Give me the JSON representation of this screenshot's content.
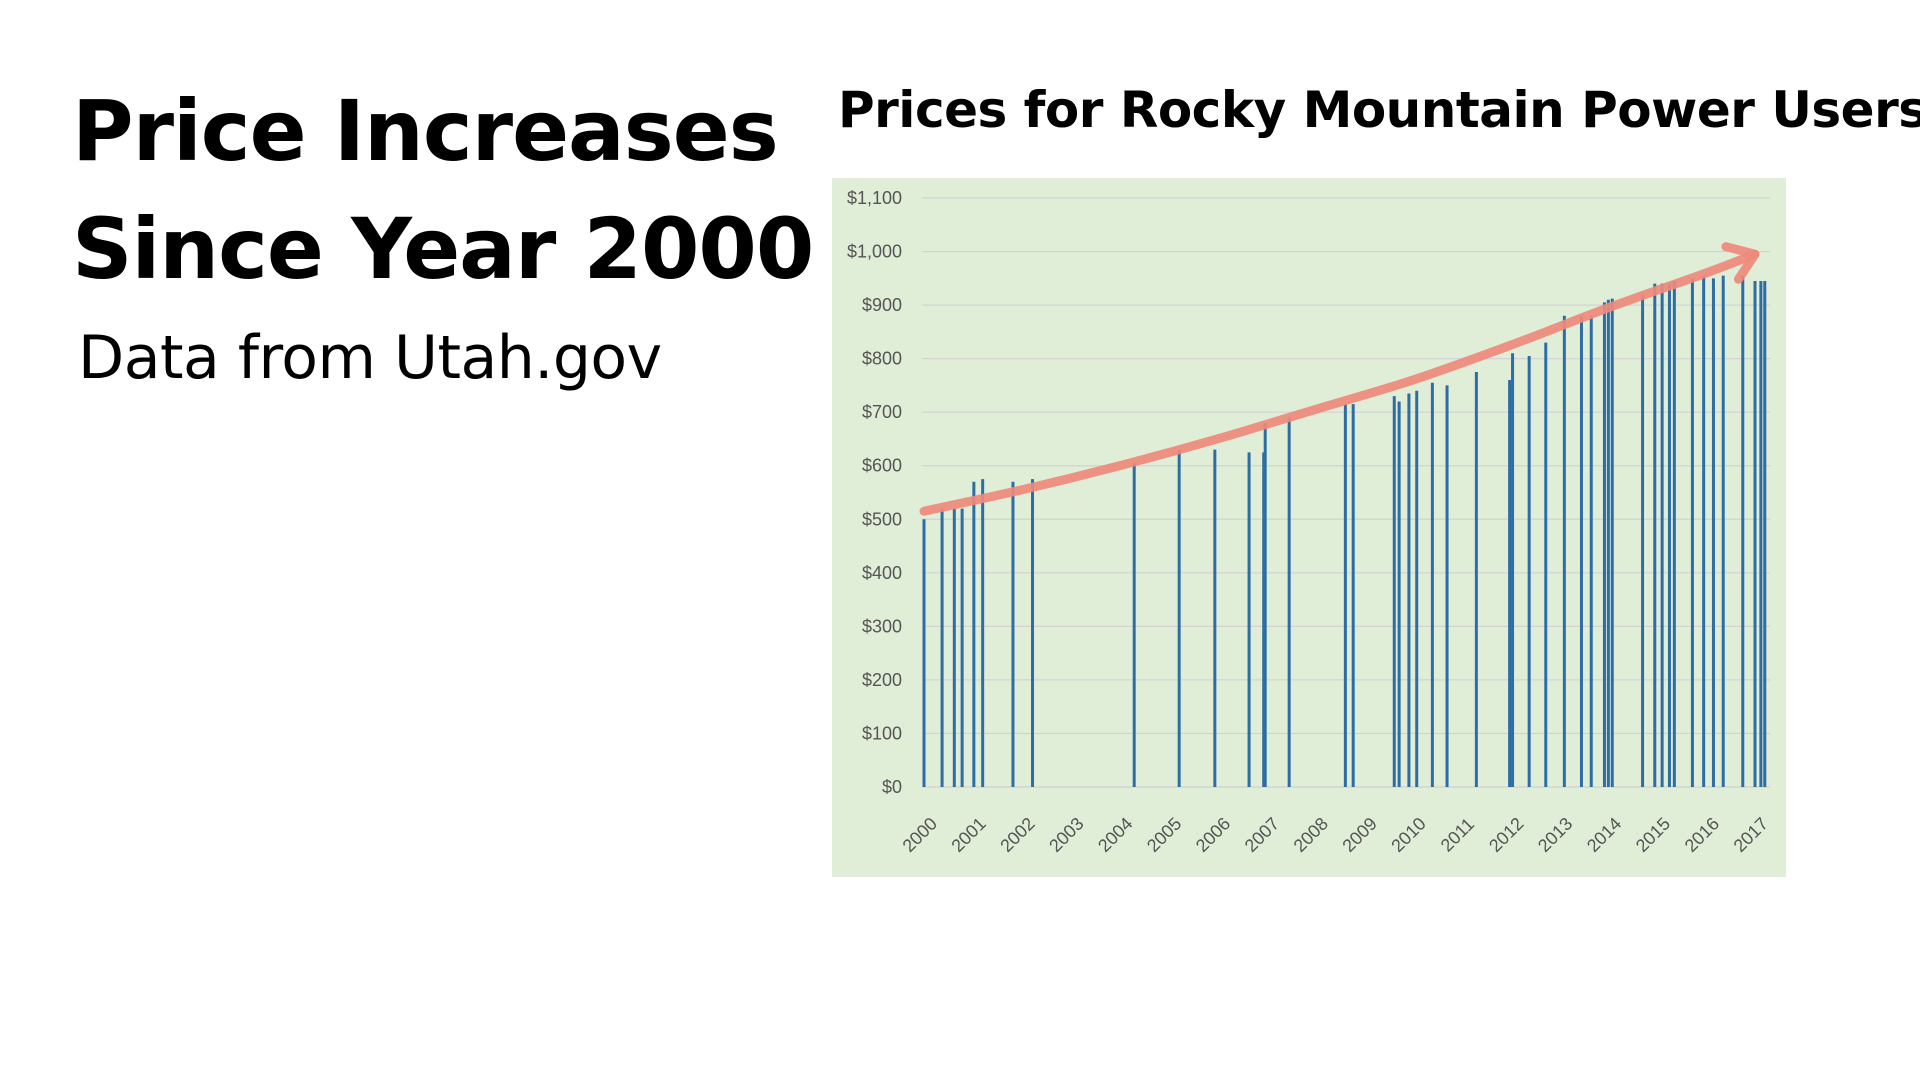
{
  "slide": {
    "heading_line1": "Price Increases",
    "heading_line2": "Since Year 2000",
    "source": "Data from Utah.gov"
  },
  "chart_data": {
    "type": "bar",
    "title": "Prices for Rocky Mountain Power Users",
    "xlabel": "",
    "ylabel": "",
    "ylim": [
      0,
      1100
    ],
    "y_ticks": [
      0,
      100,
      200,
      300,
      400,
      500,
      600,
      700,
      800,
      900,
      1000,
      1100
    ],
    "y_tick_labels": [
      "$0",
      "$100",
      "$200",
      "$300",
      "$400",
      "$500",
      "$600",
      "$700",
      "$800",
      "$900",
      "$1,000",
      "$1,100"
    ],
    "x_range": [
      2000,
      2017
    ],
    "x_tick_labels": [
      "2000",
      "2001",
      "2002",
      "2003",
      "2004",
      "2005",
      "2006",
      "2007",
      "2008",
      "2009",
      "2010",
      "2011",
      "2012",
      "2013",
      "2014",
      "2015",
      "2016",
      "2017"
    ],
    "grid": true,
    "bar_color": "#2e6da4",
    "background_color": "#e0eed8",
    "grid_color": "#d2d2d2",
    "points": [
      {
        "x": 2000.0,
        "y": 500
      },
      {
        "x": 2000.37,
        "y": 520
      },
      {
        "x": 2000.62,
        "y": 520
      },
      {
        "x": 2000.78,
        "y": 520
      },
      {
        "x": 2001.02,
        "y": 570
      },
      {
        "x": 2001.2,
        "y": 575
      },
      {
        "x": 2001.82,
        "y": 570
      },
      {
        "x": 2002.22,
        "y": 575
      },
      {
        "x": 2004.3,
        "y": 605
      },
      {
        "x": 2005.22,
        "y": 630
      },
      {
        "x": 2005.95,
        "y": 630
      },
      {
        "x": 2006.65,
        "y": 625
      },
      {
        "x": 2006.95,
        "y": 625
      },
      {
        "x": 2006.98,
        "y": 680
      },
      {
        "x": 2007.47,
        "y": 690
      },
      {
        "x": 2008.62,
        "y": 715
      },
      {
        "x": 2008.78,
        "y": 715
      },
      {
        "x": 2009.62,
        "y": 730
      },
      {
        "x": 2009.72,
        "y": 720
      },
      {
        "x": 2009.92,
        "y": 735
      },
      {
        "x": 2010.08,
        "y": 740
      },
      {
        "x": 2010.4,
        "y": 755
      },
      {
        "x": 2010.7,
        "y": 750
      },
      {
        "x": 2011.3,
        "y": 775
      },
      {
        "x": 2011.98,
        "y": 760
      },
      {
        "x": 2012.04,
        "y": 810
      },
      {
        "x": 2012.38,
        "y": 805
      },
      {
        "x": 2012.72,
        "y": 830
      },
      {
        "x": 2013.1,
        "y": 880
      },
      {
        "x": 2013.45,
        "y": 880
      },
      {
        "x": 2013.65,
        "y": 880
      },
      {
        "x": 2013.92,
        "y": 905
      },
      {
        "x": 2014.0,
        "y": 910
      },
      {
        "x": 2014.08,
        "y": 912
      },
      {
        "x": 2014.7,
        "y": 920
      },
      {
        "x": 2014.95,
        "y": 940
      },
      {
        "x": 2015.1,
        "y": 940
      },
      {
        "x": 2015.25,
        "y": 940
      },
      {
        "x": 2015.35,
        "y": 945
      },
      {
        "x": 2015.72,
        "y": 950
      },
      {
        "x": 2015.95,
        "y": 955
      },
      {
        "x": 2016.15,
        "y": 950
      },
      {
        "x": 2016.35,
        "y": 955
      },
      {
        "x": 2016.75,
        "y": 955
      },
      {
        "x": 2017.0,
        "y": 945
      },
      {
        "x": 2017.12,
        "y": 945
      },
      {
        "x": 2017.2,
        "y": 945
      }
    ],
    "annotation": {
      "kind": "trend-arrow",
      "color": "#ee8a7c",
      "x": [
        2000,
        2002,
        2004,
        2006,
        2008,
        2010,
        2012,
        2014,
        2016,
        2017
      ],
      "y": [
        515,
        555,
        600,
        650,
        705,
        760,
        825,
        895,
        960,
        995
      ]
    }
  }
}
